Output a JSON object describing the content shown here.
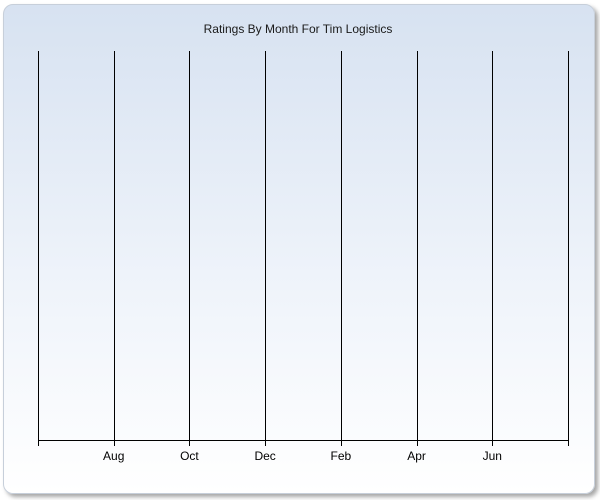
{
  "chart_data": {
    "type": "bar",
    "title": "Ratings By Month For Tim Logistics",
    "xlabel": "",
    "ylabel": "",
    "categories": [
      "Aug",
      "Oct",
      "Dec",
      "Feb",
      "Apr",
      "Jun"
    ],
    "series": [],
    "grid": true,
    "legend": "none"
  },
  "colors": {
    "background_top": "#d7e2f1",
    "background_bottom": "#ffffff",
    "gridline": "#000000",
    "text": "#000000"
  }
}
